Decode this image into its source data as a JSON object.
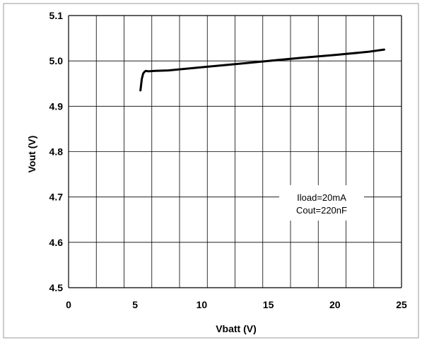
{
  "chart_data": {
    "type": "line",
    "title": "",
    "xlabel": "Vbatt (V)",
    "ylabel": "Vout (V)",
    "xlim": [
      0,
      25
    ],
    "ylim": [
      4.5,
      5.1
    ],
    "x_ticks": [
      0,
      5,
      10,
      15,
      20,
      25
    ],
    "x_tick_labels": [
      "0",
      "5",
      "10",
      "15",
      "20",
      "25"
    ],
    "x_grid_count": 12,
    "y_ticks": [
      4.5,
      4.6,
      4.7,
      4.8,
      4.9,
      5.0,
      5.1
    ],
    "y_tick_labels": [
      "4.5",
      "4.6",
      "4.7",
      "4.8",
      "4.9",
      "5.0",
      "5.1"
    ],
    "grid": true,
    "series": [
      {
        "x": [
          5.4,
          5.5,
          5.6,
          5.7,
          5.8,
          6.0,
          6.5,
          7.5,
          10,
          12.5,
          15,
          17.5,
          20,
          22.5,
          23.7
        ],
        "y": [
          4.935,
          4.96,
          4.972,
          4.976,
          4.978,
          4.977,
          4.978,
          4.979,
          4.986,
          4.993,
          5.0,
          5.007,
          5.013,
          5.02,
          5.025
        ]
      }
    ],
    "annotations": [
      "Iload=20mA",
      "Cout=220nF"
    ],
    "colors": {
      "line": "#000000",
      "grid": "#000000",
      "background": "#ffffff"
    }
  }
}
